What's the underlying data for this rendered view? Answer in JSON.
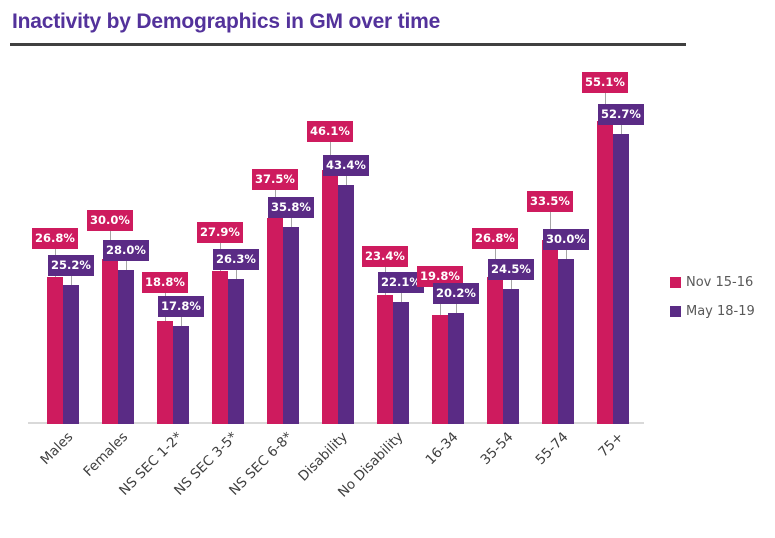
{
  "title": "Inactivity by Demographics in GM over time",
  "chart_data": {
    "type": "bar",
    "title": "Inactivity by Demographics in GM over time",
    "categories": [
      "Males",
      "Females",
      "NS SEC 1-2*",
      "NS SEC 3-5*",
      "NS SEC 6-8*",
      "Disability",
      "No Disability",
      "16-34",
      "35-54",
      "55-74",
      "75+"
    ],
    "series": [
      {
        "name": "Nov 15-16",
        "color": "#CE1B5E",
        "values": [
          26.8,
          30.0,
          18.8,
          27.9,
          37.5,
          46.1,
          23.4,
          19.8,
          26.8,
          33.5,
          55.1
        ]
      },
      {
        "name": "May 18-19",
        "color": "#5A2B85",
        "values": [
          25.2,
          28.0,
          17.8,
          26.3,
          35.8,
          43.4,
          22.1,
          20.2,
          24.5,
          30.0,
          52.7
        ]
      }
    ],
    "value_format": "0.0%",
    "data_labels_shown": true,
    "xlabel": "",
    "ylabel": "",
    "ylim": [
      0,
      60
    ],
    "gridlines": false,
    "y_axis_shown": false,
    "legend_position": "right"
  },
  "colors": {
    "title": "#53329B",
    "title_rule": "#404040",
    "axis_line": "#D9D9D9",
    "axis_labels": "#3F3F3F",
    "legend_text": "#595959",
    "leader_line": "#A6A6A6",
    "data_label_text": "#FFFFFF",
    "background": "#FFFFFF"
  }
}
